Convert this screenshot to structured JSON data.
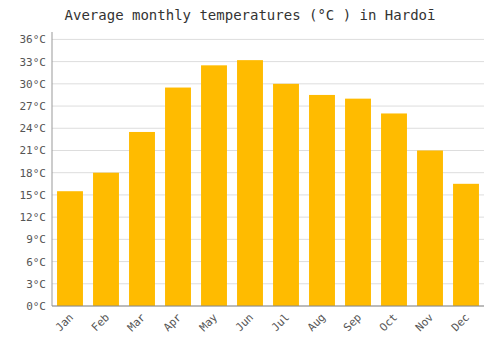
{
  "chart_data": {
    "type": "bar",
    "title": "Average monthly temperatures (°C ) in Hardoī",
    "categories": [
      "Jan",
      "Feb",
      "Mar",
      "Apr",
      "May",
      "Jun",
      "Jul",
      "Aug",
      "Sep",
      "Oct",
      "Nov",
      "Dec"
    ],
    "values": [
      15.5,
      18.0,
      23.5,
      29.5,
      32.5,
      33.2,
      30.0,
      28.5,
      28.0,
      26.0,
      21.0,
      16.5
    ],
    "color": "#FFBB00",
    "ylim": [
      0,
      37
    ],
    "yticks": [
      {
        "value": 0,
        "label": "0°C"
      },
      {
        "value": 3,
        "label": "3°C"
      },
      {
        "value": 6,
        "label": "6°C"
      },
      {
        "value": 9,
        "label": "9°C"
      },
      {
        "value": 12,
        "label": "12°C"
      },
      {
        "value": 15,
        "label": "15°C"
      },
      {
        "value": 18,
        "label": "18°C"
      },
      {
        "value": 21,
        "label": "21°C"
      },
      {
        "value": 24,
        "label": "24°C"
      },
      {
        "value": 27,
        "label": "27°C"
      },
      {
        "value": 30,
        "label": "30°C"
      },
      {
        "value": 33,
        "label": "33°C"
      },
      {
        "value": 36,
        "label": "36°C"
      }
    ],
    "grid": true
  }
}
